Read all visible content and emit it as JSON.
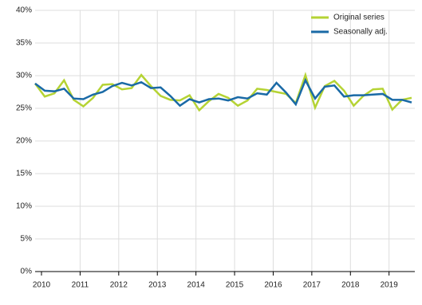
{
  "chart_data": {
    "type": "line",
    "categories": [
      "2010",
      null,
      null,
      null,
      "2011",
      null,
      null,
      null,
      "2012",
      null,
      null,
      null,
      "2013",
      null,
      null,
      null,
      "2014",
      null,
      null,
      null,
      "2015",
      null,
      null,
      null,
      "2016",
      null,
      null,
      null,
      "2017",
      null,
      null,
      null,
      "2018",
      null,
      null,
      null,
      "2019",
      null,
      null,
      null
    ],
    "series": [
      {
        "name": "Original series",
        "color": "#b5d334",
        "values": [
          28.8,
          26.8,
          27.3,
          29.3,
          26.3,
          25.3,
          26.6,
          28.6,
          28.7,
          27.9,
          28.1,
          30.1,
          28.4,
          26.9,
          26.3,
          26.2,
          27.0,
          24.7,
          26.1,
          27.2,
          26.6,
          25.4,
          26.2,
          28.0,
          27.8,
          27.5,
          27.2,
          25.8,
          30.1,
          25.1,
          28.4,
          29.2,
          27.7,
          25.4,
          26.9,
          27.9,
          28.0,
          24.8,
          26.3,
          26.6
        ]
      },
      {
        "name": "Seasonally adj.",
        "color": "#1a6aa6",
        "values": [
          28.8,
          27.7,
          27.6,
          28.0,
          26.5,
          26.4,
          27.1,
          27.5,
          28.4,
          28.9,
          28.5,
          29.0,
          28.1,
          28.2,
          26.9,
          25.4,
          26.4,
          25.9,
          26.4,
          26.5,
          26.2,
          26.7,
          26.5,
          27.3,
          27.1,
          28.9,
          27.4,
          25.6,
          29.3,
          26.5,
          28.3,
          28.5,
          26.8,
          27.0,
          27.0,
          27.1,
          27.2,
          26.3,
          26.3,
          25.9
        ]
      }
    ],
    "ylim": [
      0,
      40
    ],
    "yticks": [
      {
        "value": 0,
        "label": "0%"
      },
      {
        "value": 5,
        "label": "5%"
      },
      {
        "value": 10,
        "label": "10%"
      },
      {
        "value": 15,
        "label": "15%"
      },
      {
        "value": 20,
        "label": "20%"
      },
      {
        "value": 25,
        "label": "25%"
      },
      {
        "value": 30,
        "label": "30%"
      },
      {
        "value": 35,
        "label": "35%"
      },
      {
        "value": 40,
        "label": "40%"
      }
    ],
    "grid": true,
    "legend": "top-right"
  }
}
